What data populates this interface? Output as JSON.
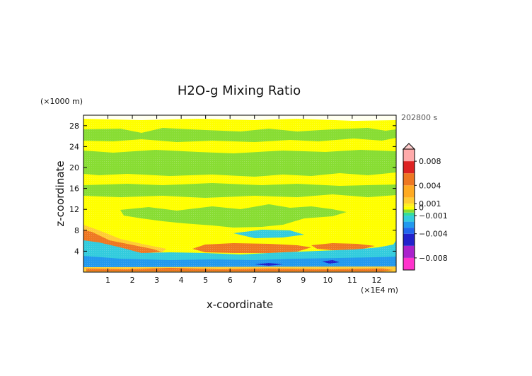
{
  "chart_data": {
    "type": "heatmap",
    "title": "H2O-g Mixing Ratio",
    "xlabel": "x-coordinate",
    "ylabel": "z-coordinate",
    "x_unit": "(×1E4 m)",
    "y_unit": "(×1000 m)",
    "time_label": "202800 s",
    "xlim": [
      0,
      12.8
    ],
    "ylim": [
      0,
      30
    ],
    "x_ticks": [
      1,
      2,
      3,
      4,
      5,
      6,
      7,
      8,
      9,
      10,
      11,
      12
    ],
    "y_ticks": [
      4,
      8,
      12,
      16,
      20,
      24,
      28
    ],
    "colorbar": {
      "range": [
        -0.01,
        0.01
      ],
      "tick_values": [
        0.008,
        0.004,
        0.001,
        0,
        -0.001,
        -0.004,
        -0.008
      ],
      "tick_labels": [
        "0.008",
        "0.004",
        "0.001",
        "0",
        "−0.001",
        "−0.004",
        "−0.008"
      ],
      "extend": "both",
      "colors": {
        "very_negative": "#ff33cc",
        "strong_negative": "#2222cc",
        "negative": "#2299ee",
        "slight_negative": "#33ccdd",
        "near_zero_neg": "#88dd33",
        "zero": "#ffff00",
        "slight_positive": "#ffcc33",
        "positive": "#ee7722",
        "strong_positive": "#dd2222",
        "very_positive": "#ffaaaa"
      }
    },
    "regions": [
      {
        "kind": "band",
        "x": [
          0,
          12.8
        ],
        "z": [
          28.2,
          30
        ],
        "value": 0,
        "note": "top yellow"
      },
      {
        "kind": "band",
        "x": [
          0,
          12.8
        ],
        "z": [
          25.5,
          28.2
        ],
        "value": -0.0008
      },
      {
        "kind": "band",
        "x": [
          0,
          12.8
        ],
        "z": [
          22.5,
          25.5
        ],
        "value": 0
      },
      {
        "kind": "band",
        "x": [
          0,
          12.8
        ],
        "z": [
          18.2,
          22.5
        ],
        "value": -0.0008
      },
      {
        "kind": "band",
        "x": [
          0,
          12.8
        ],
        "z": [
          16.5,
          18.2
        ],
        "value": 0
      },
      {
        "kind": "band",
        "x": [
          0,
          12.8
        ],
        "z": [
          14.8,
          16.5
        ],
        "value": -0.0008
      },
      {
        "kind": "band",
        "x": [
          0,
          12.8
        ],
        "z": [
          12.3,
          14.8
        ],
        "value": 0
      },
      {
        "kind": "band",
        "x": [
          1.7,
          10.5
        ],
        "z": [
          9.5,
          11.3
        ],
        "value": -0.0008
      },
      {
        "kind": "band",
        "x": [
          0,
          12.8
        ],
        "z": [
          0,
          1.0
        ],
        "value": 0.002
      },
      {
        "kind": "band",
        "x": [
          0,
          12.8
        ],
        "z": [
          1.0,
          2.3
        ],
        "value": -0.003
      },
      {
        "kind": "band",
        "x": [
          0.3,
          12.6
        ],
        "z": [
          2.3,
          3.6
        ],
        "value": -0.0015
      },
      {
        "kind": "band",
        "x": [
          5.5,
          8.5
        ],
        "z": [
          6.5,
          7.5
        ],
        "value": -0.0015
      },
      {
        "kind": "band",
        "x": [
          0,
          3.2
        ],
        "z": [
          3.6,
          6.8
        ],
        "value": 0.003
      },
      {
        "kind": "band",
        "x": [
          4.5,
          9.2
        ],
        "z": [
          3.6,
          5.0
        ],
        "value": 0.003
      },
      {
        "kind": "band",
        "x": [
          9.2,
          11.5
        ],
        "z": [
          3.6,
          5.0
        ],
        "value": 0.002
      }
    ]
  }
}
